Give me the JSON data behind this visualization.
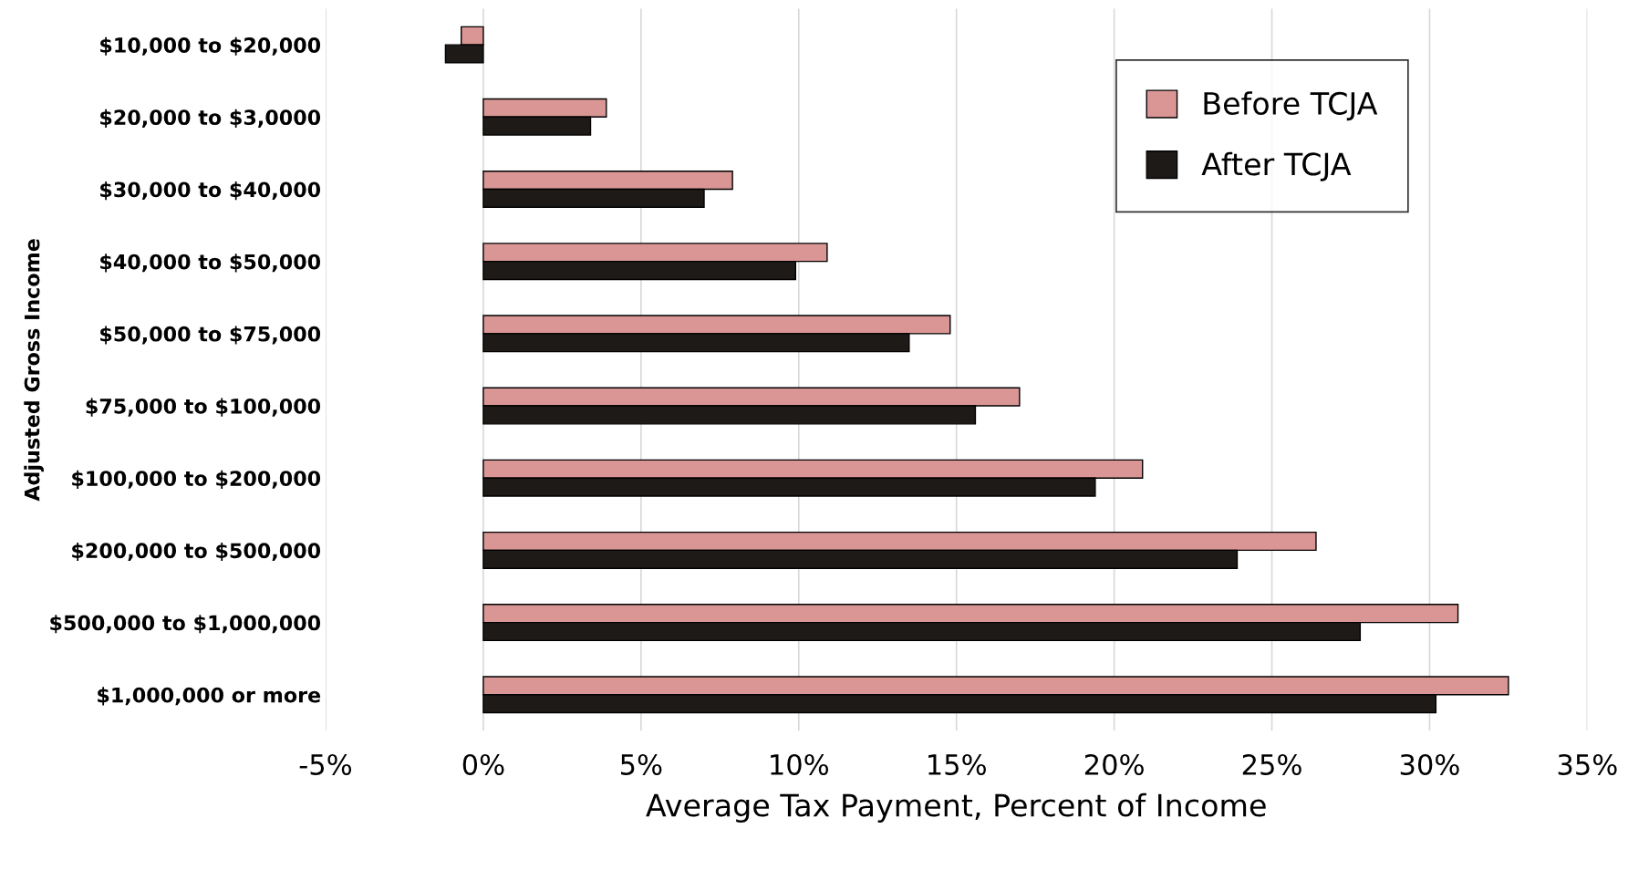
{
  "chart_data": {
    "type": "bar",
    "orientation": "horizontal",
    "xlabel": "Average Tax Payment, Percent of Income",
    "ylabel": "Adjusted Gross Income",
    "categories": [
      "$10,000 to $20,000",
      "$20,000 to $3,0000",
      "$30,000 to $40,000",
      "$40,000 to $50,000",
      "$50,000 to $75,000",
      "$75,000 to $100,000",
      "$100,000 to $200,000",
      "$200,000 to $500,000",
      "$500,000 to $1,000,000",
      "$1,000,000 or more"
    ],
    "series": [
      {
        "name": "Before TCJA",
        "color": "#d99694",
        "values": [
          -0.7,
          3.9,
          7.9,
          10.9,
          14.8,
          17.0,
          20.9,
          26.4,
          30.9,
          32.5
        ]
      },
      {
        "name": "After TCJA",
        "color": "#1e1a17",
        "values": [
          -1.2,
          3.4,
          7.0,
          9.9,
          13.5,
          15.6,
          19.4,
          23.9,
          27.8,
          30.2
        ]
      }
    ],
    "xlim": [
      -5,
      35
    ],
    "xticks": [
      {
        "value": -5,
        "label": "-5%"
      },
      {
        "value": 0,
        "label": "0%"
      },
      {
        "value": 5,
        "label": "5%"
      },
      {
        "value": 10,
        "label": "10%"
      },
      {
        "value": 15,
        "label": "15%"
      },
      {
        "value": 20,
        "label": "20%"
      },
      {
        "value": 25,
        "label": "25%"
      },
      {
        "value": 30,
        "label": "30%"
      },
      {
        "value": 35,
        "label": "35%"
      }
    ],
    "grid": "x",
    "legend": "top right"
  }
}
